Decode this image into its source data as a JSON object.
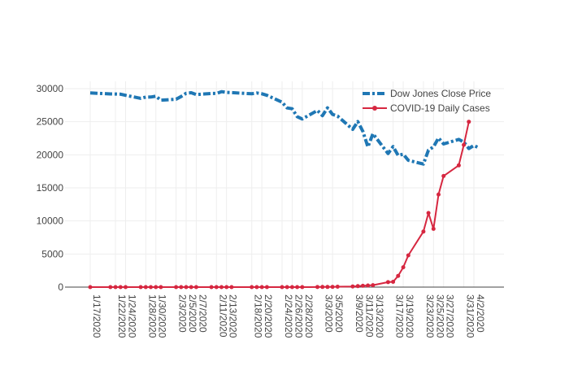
{
  "chart_data": {
    "type": "line",
    "title": "",
    "xlabel": "",
    "ylabel": "",
    "ylim": [
      0,
      30000
    ],
    "yticks": [
      0,
      5000,
      10000,
      15000,
      20000,
      25000,
      30000
    ],
    "grid": true,
    "legend_position": "top-right",
    "x_tick_labels": [
      "1/17/2020",
      "1/22/2020",
      "1/24/2020",
      "1/28/2020",
      "1/30/2020",
      "2/3/2020",
      "2/5/2020",
      "2/7/2020",
      "2/11/2020",
      "2/13/2020",
      "2/18/2020",
      "2/20/2020",
      "2/24/2020",
      "2/26/2020",
      "2/28/2020",
      "3/3/2020",
      "3/5/2020",
      "3/9/2020",
      "3/11/2020",
      "3/13/2020",
      "3/17/2020",
      "3/19/2020",
      "3/23/2020",
      "3/25/2020",
      "3/27/2020",
      "3/31/2020",
      "4/2/2020"
    ],
    "series": [
      {
        "name": "Dow Jones Close Price",
        "color": "#1f77b4",
        "style": "dashdot",
        "x": [
          "1/17/2020",
          "1/21/2020",
          "1/22/2020",
          "1/23/2020",
          "1/24/2020",
          "1/27/2020",
          "1/28/2020",
          "1/29/2020",
          "1/30/2020",
          "1/31/2020",
          "2/3/2020",
          "2/4/2020",
          "2/5/2020",
          "2/6/2020",
          "2/7/2020",
          "2/10/2020",
          "2/11/2020",
          "2/12/2020",
          "2/13/2020",
          "2/14/2020",
          "2/18/2020",
          "2/19/2020",
          "2/20/2020",
          "2/21/2020",
          "2/24/2020",
          "2/25/2020",
          "2/26/2020",
          "2/27/2020",
          "2/28/2020",
          "3/2/2020",
          "3/3/2020",
          "3/4/2020",
          "3/5/2020",
          "3/6/2020",
          "3/9/2020",
          "3/10/2020",
          "3/11/2020",
          "3/12/2020",
          "3/13/2020",
          "3/16/2020",
          "3/17/2020",
          "3/18/2020",
          "3/19/2020",
          "3/20/2020",
          "3/23/2020",
          "3/24/2020",
          "3/25/2020",
          "3/26/2020",
          "3/27/2020",
          "3/30/2020",
          "3/31/2020",
          "4/1/2020",
          "4/2/2020",
          "4/3/2020"
        ],
        "values": [
          29350,
          29200,
          29190,
          29160,
          28990,
          28540,
          28720,
          28730,
          28860,
          28260,
          28400,
          28810,
          29300,
          29380,
          29100,
          29280,
          29280,
          29550,
          29430,
          29400,
          29230,
          29350,
          29220,
          28990,
          27960,
          27080,
          26960,
          25770,
          25410,
          26700,
          25920,
          27100,
          26120,
          25860,
          23850,
          25020,
          23550,
          21200,
          23190,
          20190,
          21240,
          19900,
          20090,
          19170,
          18600,
          20700,
          21200,
          22550,
          21640,
          22330,
          21920,
          20950,
          21410,
          21050
        ]
      },
      {
        "name": "COVID-19 Daily Cases",
        "color": "#d62740",
        "style": "solid-markers",
        "x": [
          "1/17/2020",
          "1/21/2020",
          "1/22/2020",
          "1/23/2020",
          "1/24/2020",
          "1/27/2020",
          "1/28/2020",
          "1/29/2020",
          "1/30/2020",
          "1/31/2020",
          "2/3/2020",
          "2/4/2020",
          "2/5/2020",
          "2/6/2020",
          "2/7/2020",
          "2/10/2020",
          "2/11/2020",
          "2/12/2020",
          "2/13/2020",
          "2/14/2020",
          "2/18/2020",
          "2/19/2020",
          "2/20/2020",
          "2/21/2020",
          "2/24/2020",
          "2/25/2020",
          "2/26/2020",
          "2/27/2020",
          "2/28/2020",
          "3/2/2020",
          "3/3/2020",
          "3/4/2020",
          "3/5/2020",
          "3/6/2020",
          "3/9/2020",
          "3/10/2020",
          "3/11/2020",
          "3/12/2020",
          "3/13/2020",
          "3/16/2020",
          "3/17/2020",
          "3/18/2020",
          "3/19/2020",
          "3/20/2020",
          "3/23/2020",
          "3/24/2020",
          "3/25/2020",
          "3/26/2020",
          "3/27/2020",
          "3/30/2020",
          "3/31/2020",
          "4/1/2020"
        ],
        "values": [
          0,
          0,
          0,
          0,
          0,
          0,
          0,
          0,
          0,
          0,
          0,
          0,
          0,
          0,
          0,
          0,
          0,
          0,
          0,
          0,
          0,
          0,
          0,
          0,
          0,
          0,
          0,
          0,
          0,
          10,
          20,
          25,
          40,
          60,
          100,
          150,
          200,
          250,
          300,
          750,
          800,
          1700,
          3000,
          4800,
          8400,
          11200,
          8800,
          14000,
          16800,
          18400,
          21500,
          25000
        ]
      }
    ]
  }
}
